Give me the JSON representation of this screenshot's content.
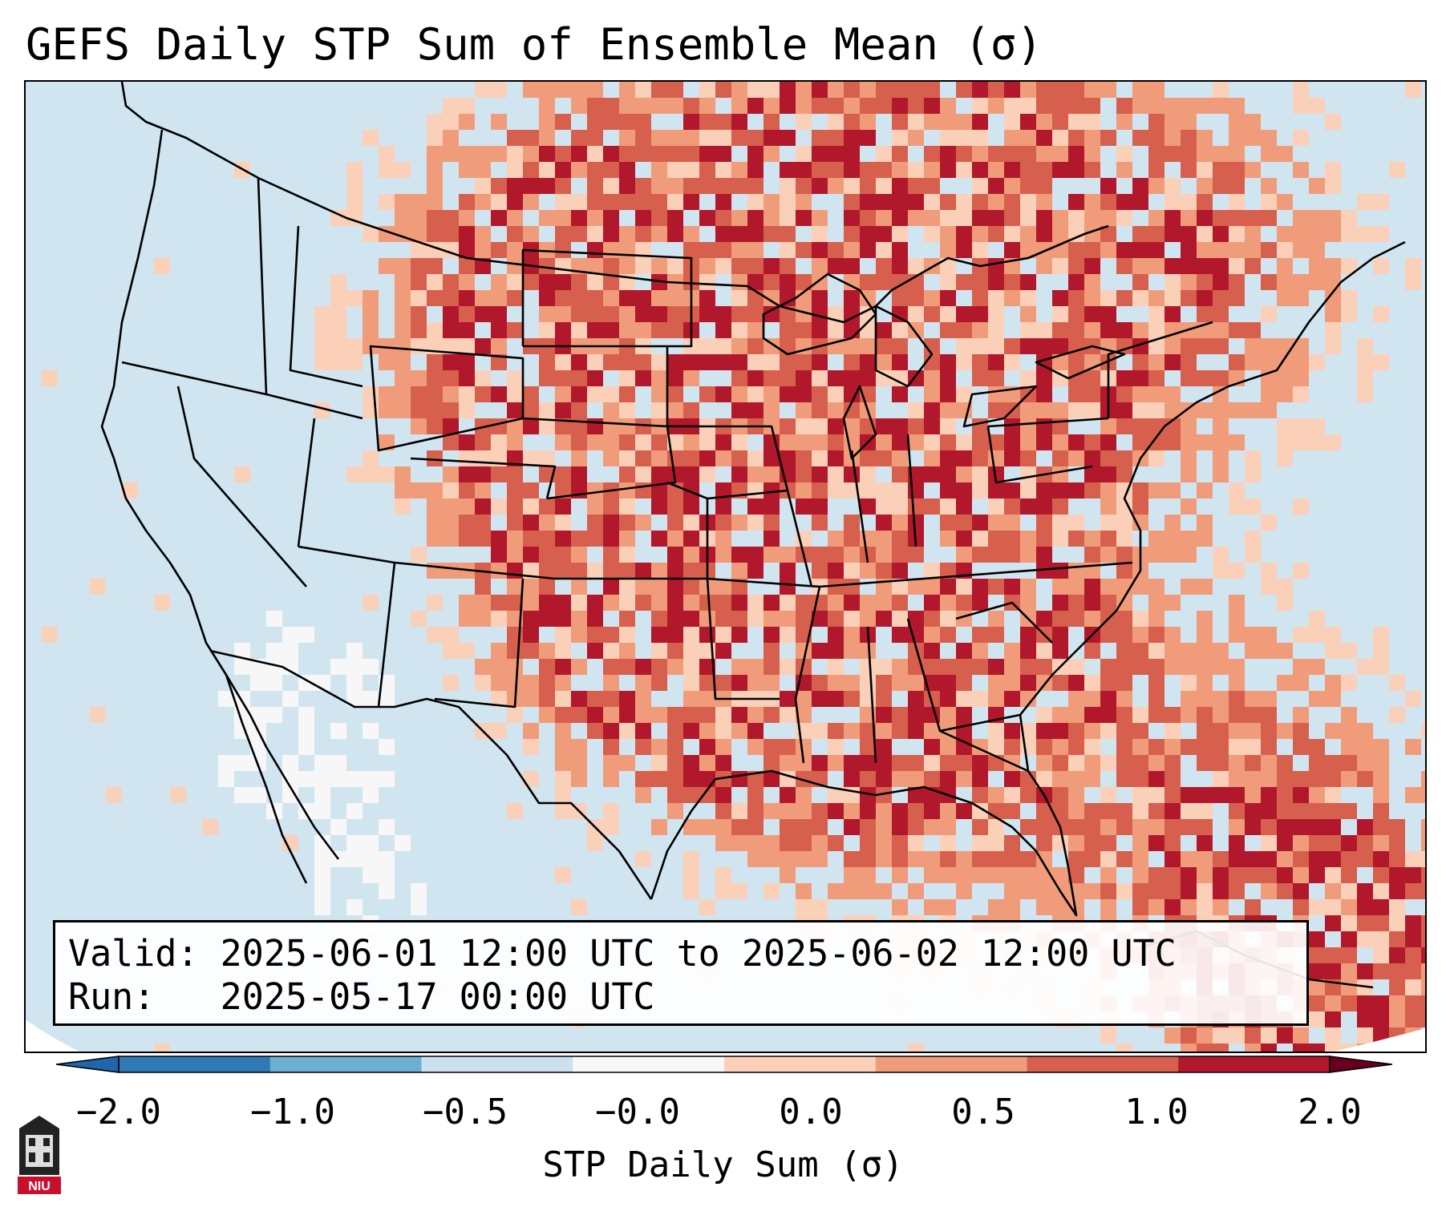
{
  "title": "GEFS Daily STP Sum of Ensemble Mean (σ)",
  "info": {
    "valid_label": "Valid:",
    "valid_text": "2025-06-01 12:00 UTC to 2025-06-02 12:00 UTC",
    "run_label": "Run:",
    "run_text": "2025-05-17 00:00 UTC"
  },
  "colorbar": {
    "label": "STP Daily Sum (σ)",
    "ticks": [
      "−2.0",
      "−1.0",
      "−0.5",
      "−0.0",
      "0.0",
      "0.5",
      "1.0",
      "2.0"
    ],
    "colors": [
      "#2f79b5",
      "#6eaed2",
      "#cbe2ee",
      "#f7f7f7",
      "#fbd0b9",
      "#f09c7b",
      "#d6604d",
      "#b2182b"
    ],
    "extend": "both"
  },
  "map": {
    "background_color": "#d1e5f0",
    "outside_color": "#ffffff",
    "border_color": "#000000"
  },
  "logo": {
    "text": "NIU",
    "color": "#c8102e"
  }
}
